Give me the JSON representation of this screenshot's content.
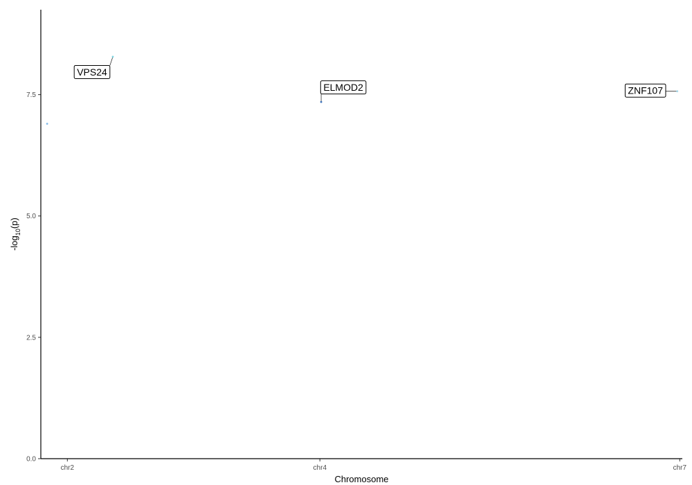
{
  "chart_data": {
    "type": "scatter",
    "xlabel": "Chromosome",
    "ylabel": "-log10(p)",
    "ylabel_parts": {
      "prefix": "-log",
      "subscript": "10",
      "suffix": "(p)"
    },
    "ylim": [
      0,
      9.25
    ],
    "y_ticks": [
      0.0,
      2.5,
      5.0,
      7.5
    ],
    "y_tick_labels": [
      "0.0",
      "2.5",
      "5.0",
      "7.5"
    ],
    "x_ticks": [
      {
        "label": "chr2",
        "pos": 2
      },
      {
        "label": "chr4",
        "pos": 4
      },
      {
        "label": "chr7",
        "pos": 6.85
      }
    ],
    "xlim": [
      1.79,
      6.87
    ],
    "points": [
      {
        "x": 1.84,
        "y": 6.9,
        "color": "#7fb8e8"
      },
      {
        "x": 2.36,
        "y": 8.28,
        "color": "#7fd4e0"
      },
      {
        "x": 4.01,
        "y": 7.35,
        "color": "#3a6fb8"
      },
      {
        "x": 6.83,
        "y": 7.57,
        "color": "#a6d8ea"
      }
    ],
    "labels": [
      {
        "text": "VPS24",
        "point": 1
      },
      {
        "text": "ELMOD2",
        "point": 2
      },
      {
        "text": "ZNF107",
        "point": 3
      }
    ],
    "grid": false,
    "legend": "none"
  }
}
